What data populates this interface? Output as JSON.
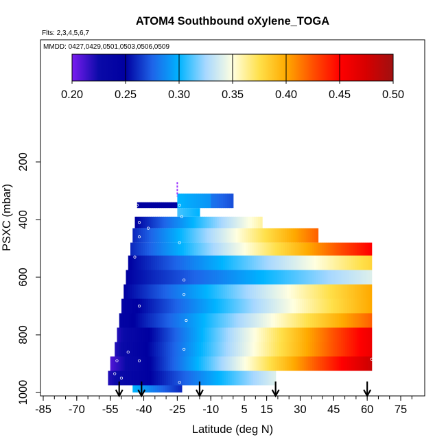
{
  "chart_data": {
    "type": "heatmap",
    "title": "ATOM4 Southbound oXylene_TOGA",
    "subtitle_flights": "Flts: 2,3,4,5,6,7",
    "subtitle_dates": "MMDD: 0427,0429,0501,0503,0506,0509",
    "xlabel": "Latitude (deg N)",
    "ylabel": "PSXC (mbar)",
    "x_ticks": [
      -85,
      -70,
      -55,
      -40,
      -25,
      -10,
      5,
      15,
      30,
      45,
      60,
      75
    ],
    "x_minor_step": 5,
    "xlim": [
      -87,
      81
    ],
    "y_ticks": [
      200,
      400,
      600,
      800,
      1000
    ],
    "ylim": [
      1000,
      0
    ],
    "y_axis_reversed": true,
    "colorbar": {
      "min": 0.2,
      "max": 0.5,
      "tick_labels": [
        "0.20",
        "0.25",
        "0.30",
        "0.35",
        "0.40",
        "0.45",
        "0.50"
      ],
      "colors": [
        "#7a1cf0",
        "#0a0aa8",
        "#0000a0",
        "#1e64e8",
        "#00b4ff",
        "#a8d8ff",
        "#ffffe0",
        "#ffe04a",
        "#ffaa00",
        "#ff5000",
        "#ff0000",
        "#d60000",
        "#a01010"
      ]
    },
    "bands": [
      {
        "p_top": 340,
        "p_bot": 360,
        "x_start": -43,
        "x_end": -25,
        "v_start": 0.25,
        "v_end": 0.25
      },
      {
        "p_top": 360,
        "p_bot": 390,
        "x_start": -25,
        "x_end": -15,
        "v_start": 0.31,
        "v_end": 0.3
      },
      {
        "p_top": 310,
        "p_bot": 360,
        "x_start": -25,
        "x_end": -10,
        "v_start": 0.3,
        "v_end": 0.29
      },
      {
        "p_top": 310,
        "p_bot": 360,
        "x_start": -10,
        "x_end": 0,
        "v_start": 0.28,
        "v_end": 0.27
      },
      {
        "p_top": 390,
        "p_bot": 430,
        "x_start": -44,
        "x_end": 13,
        "v_start": 0.25,
        "v_end": 0.36
      },
      {
        "p_top": 430,
        "p_bot": 480,
        "x_start": -45,
        "x_end": 38,
        "v_start": 0.26,
        "v_end": 0.42
      },
      {
        "p_top": 480,
        "p_bot": 525,
        "x_start": -46,
        "x_end": 62,
        "v_start": 0.26,
        "v_end": 0.45
      },
      {
        "p_top": 525,
        "p_bot": 575,
        "x_start": -47,
        "x_end": 62,
        "v_start": 0.25,
        "v_end": 0.38
      },
      {
        "p_top": 575,
        "p_bot": 625,
        "x_start": -48,
        "x_end": 62,
        "v_start": 0.25,
        "v_end": 0.34
      },
      {
        "p_top": 625,
        "p_bot": 675,
        "x_start": -49,
        "x_end": 62,
        "v_start": 0.25,
        "v_end": 0.4
      },
      {
        "p_top": 675,
        "p_bot": 725,
        "x_start": -50,
        "x_end": 62,
        "v_start": 0.24,
        "v_end": 0.4
      },
      {
        "p_top": 725,
        "p_bot": 775,
        "x_start": -51,
        "x_end": 62,
        "v_start": 0.24,
        "v_end": 0.42
      },
      {
        "p_top": 775,
        "p_bot": 825,
        "x_start": -52,
        "x_end": 62,
        "v_start": 0.22,
        "v_end": 0.46
      },
      {
        "p_top": 825,
        "p_bot": 875,
        "x_start": -53,
        "x_end": 62,
        "v_start": 0.22,
        "v_end": 0.46
      },
      {
        "p_top": 875,
        "p_bot": 925,
        "x_start": -55,
        "x_end": 62,
        "v_start": 0.21,
        "v_end": 0.48
      },
      {
        "p_top": 925,
        "p_bot": 975,
        "x_start": -56,
        "x_end": 19,
        "v_start": 0.22,
        "v_end": 0.34
      },
      {
        "p_top": 975,
        "p_bot": 1000,
        "x_start": -45,
        "x_end": -23,
        "v_start": 0.3,
        "v_end": 0.26
      }
    ],
    "sample_points": [
      {
        "lat": -43,
        "p": 330
      },
      {
        "lat": -43,
        "p": 350
      },
      {
        "lat": -24,
        "p": 350
      },
      {
        "lat": -23,
        "p": 390
      },
      {
        "lat": -42,
        "p": 410
      },
      {
        "lat": -38,
        "p": 430
      },
      {
        "lat": -42,
        "p": 460
      },
      {
        "lat": -24,
        "p": 480
      },
      {
        "lat": -44,
        "p": 530
      },
      {
        "lat": -22,
        "p": 610
      },
      {
        "lat": -50,
        "p": 640
      },
      {
        "lat": -54,
        "p": 690
      },
      {
        "lat": -42,
        "p": 700
      },
      {
        "lat": -22,
        "p": 660
      },
      {
        "lat": -21,
        "p": 750
      },
      {
        "lat": -22,
        "p": 850
      },
      {
        "lat": -47,
        "p": 860
      },
      {
        "lat": -52,
        "p": 890
      },
      {
        "lat": -59,
        "p": 895
      },
      {
        "lat": -42,
        "p": 890
      },
      {
        "lat": -59,
        "p": 945
      },
      {
        "lat": -53,
        "p": 935
      },
      {
        "lat": -50,
        "p": 950
      },
      {
        "lat": -24,
        "p": 965
      },
      {
        "lat": 62,
        "p": 885
      },
      {
        "lat": -46,
        "p": 990
      }
    ],
    "marker_line": {
      "lat": -25,
      "p_top": 270,
      "p_bot": 320,
      "color": "#9a30ff"
    },
    "flight_arrows_lat": [
      -51,
      -41,
      -15,
      19,
      60
    ]
  }
}
